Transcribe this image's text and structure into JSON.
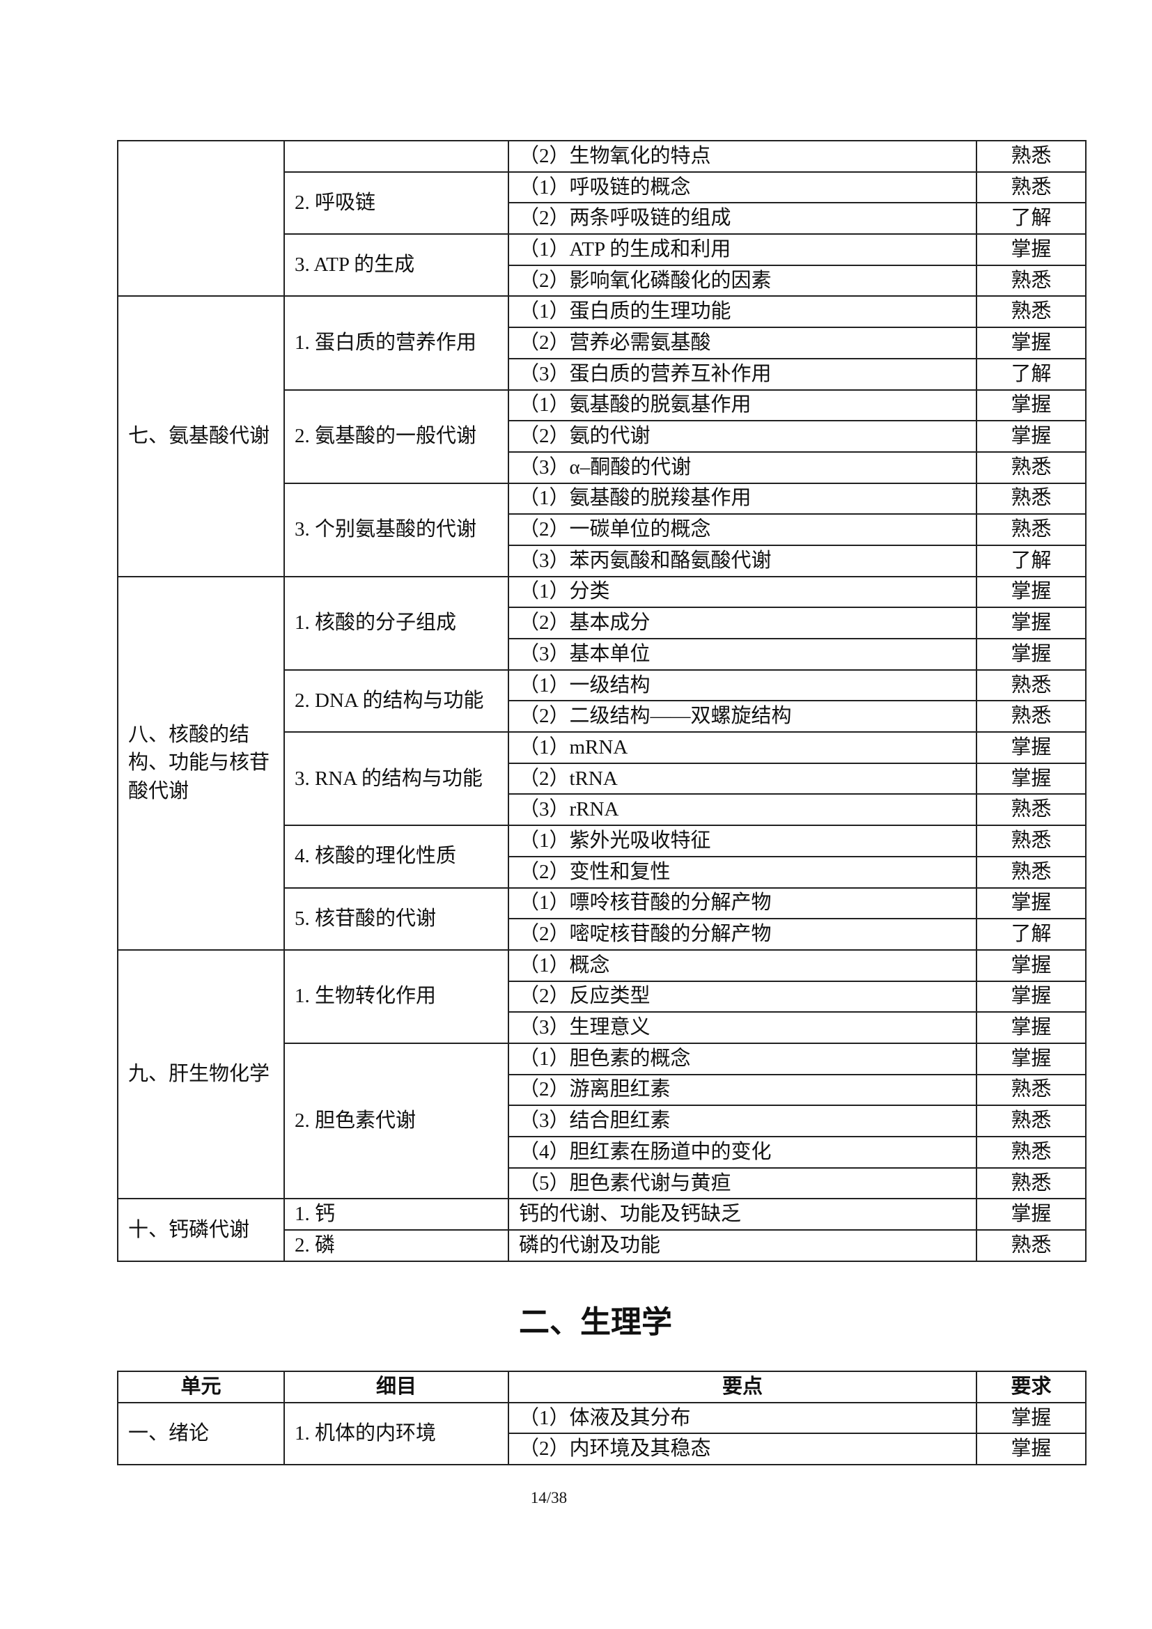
{
  "table1": {
    "groups": [
      {
        "unit": "",
        "items": [
          {
            "name": "",
            "points": [
              {
                "text": "（2）生物氧化的特点",
                "req": "熟悉"
              }
            ]
          },
          {
            "name": "2. 呼吸链",
            "points": [
              {
                "text": "（1）呼吸链的概念",
                "req": "熟悉"
              },
              {
                "text": "（2）两条呼吸链的组成",
                "req": "了解"
              }
            ]
          },
          {
            "name": "3. ATP 的生成",
            "points": [
              {
                "text": "（1）ATP 的生成和利用",
                "req": "掌握"
              },
              {
                "text": "（2）影响氧化磷酸化的因素",
                "req": "熟悉"
              }
            ]
          }
        ]
      },
      {
        "unit": "七、氨基酸代谢",
        "items": [
          {
            "name": "1. 蛋白质的营养作用",
            "points": [
              {
                "text": "（1）蛋白质的生理功能",
                "req": "熟悉"
              },
              {
                "text": "（2）营养必需氨基酸",
                "req": "掌握"
              },
              {
                "text": "（3）蛋白质的营养互补作用",
                "req": "了解"
              }
            ]
          },
          {
            "name": "2. 氨基酸的一般代谢",
            "points": [
              {
                "text": "（1）氨基酸的脱氨基作用",
                "req": "掌握"
              },
              {
                "text": "（2）氨的代谢",
                "req": "掌握"
              },
              {
                "text": "（3）α–酮酸的代谢",
                "req": "熟悉"
              }
            ]
          },
          {
            "name": "3. 个别氨基酸的代谢",
            "points": [
              {
                "text": "（1）氨基酸的脱羧基作用",
                "req": "熟悉"
              },
              {
                "text": "（2）一碳单位的概念",
                "req": "熟悉"
              },
              {
                "text": "（3）苯丙氨酸和酪氨酸代谢",
                "req": "了解"
              }
            ]
          }
        ]
      },
      {
        "unit": "八、核酸的结构、功能与核苷酸代谢",
        "items": [
          {
            "name": "1. 核酸的分子组成",
            "points": [
              {
                "text": "（1）分类",
                "req": "掌握"
              },
              {
                "text": "（2）基本成分",
                "req": "掌握"
              },
              {
                "text": "（3）基本单位",
                "req": "掌握"
              }
            ]
          },
          {
            "name": "2. DNA 的结构与功能",
            "points": [
              {
                "text": "（1）一级结构",
                "req": "熟悉"
              },
              {
                "text": "（2）二级结构——双螺旋结构",
                "req": "熟悉"
              }
            ]
          },
          {
            "name": "3. RNA 的结构与功能",
            "points": [
              {
                "text": "（1）mRNA",
                "req": "掌握"
              },
              {
                "text": "（2）tRNA",
                "req": "掌握"
              },
              {
                "text": "（3）rRNA",
                "req": "熟悉"
              }
            ]
          },
          {
            "name": "4. 核酸的理化性质",
            "points": [
              {
                "text": "（1）紫外光吸收特征",
                "req": "熟悉"
              },
              {
                "text": "（2）变性和复性",
                "req": "熟悉"
              }
            ]
          },
          {
            "name": "5. 核苷酸的代谢",
            "points": [
              {
                "text": "（1）嘌呤核苷酸的分解产物",
                "req": "掌握"
              },
              {
                "text": "（2）嘧啶核苷酸的分解产物",
                "req": "了解"
              }
            ]
          }
        ]
      },
      {
        "unit": "九、肝生物化学",
        "items": [
          {
            "name": "1. 生物转化作用",
            "points": [
              {
                "text": "（1）概念",
                "req": "掌握"
              },
              {
                "text": "（2）反应类型",
                "req": "掌握"
              },
              {
                "text": "（3）生理意义",
                "req": "掌握"
              }
            ]
          },
          {
            "name": "2. 胆色素代谢",
            "points": [
              {
                "text": "（1）胆色素的概念",
                "req": "掌握"
              },
              {
                "text": "（2）游离胆红素",
                "req": "熟悉"
              },
              {
                "text": "（3）结合胆红素",
                "req": "熟悉"
              },
              {
                "text": "（4）胆红素在肠道中的变化",
                "req": "熟悉"
              },
              {
                "text": "（5）胆色素代谢与黄疸",
                "req": "熟悉"
              }
            ]
          }
        ]
      },
      {
        "unit": "十、钙磷代谢",
        "items": [
          {
            "name": "1. 钙",
            "points": [
              {
                "text": "钙的代谢、功能及钙缺乏",
                "req": "掌握"
              }
            ]
          },
          {
            "name": "2. 磷",
            "points": [
              {
                "text": "磷的代谢及功能",
                "req": "熟悉"
              }
            ]
          }
        ]
      }
    ]
  },
  "section_title": "二、生理学",
  "table2": {
    "headers": [
      "单元",
      "细目",
      "要点",
      "要求"
    ],
    "groups": [
      {
        "unit": "一、绪论",
        "items": [
          {
            "name": "1. 机体的内环境",
            "points": [
              {
                "text": "（1）体液及其分布",
                "req": "掌握"
              },
              {
                "text": "（2）内环境及其稳态",
                "req": "掌握"
              }
            ]
          }
        ]
      }
    ]
  },
  "page_number": "14/38"
}
